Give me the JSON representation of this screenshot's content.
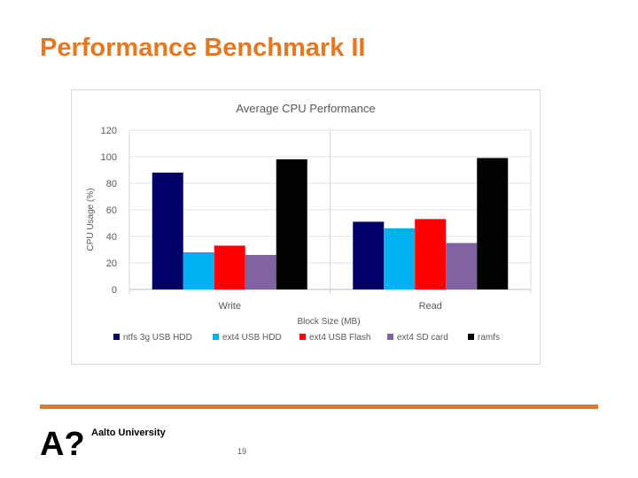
{
  "slide": {
    "title": "Performance Benchmark II",
    "logo_text": "Aalto University",
    "logo_mark": "A?",
    "page_number": "19"
  },
  "colors": {
    "accent": "#e87722"
  },
  "chart_data": {
    "type": "bar",
    "title": "Average CPU Performance",
    "xlabel": "Block Size (MB)",
    "ylabel": "CPU Usage (%)",
    "categories": [
      "Write",
      "Read"
    ],
    "ylim": [
      0,
      120
    ],
    "yticks": [
      "0",
      "20",
      "40",
      "60",
      "80",
      "100",
      "120"
    ],
    "grid": true,
    "legend_position": "bottom",
    "series": [
      {
        "name": "ntfs 3g USB HDD",
        "color": "#000066",
        "values": [
          88,
          51
        ]
      },
      {
        "name": "ext4 USB HDD",
        "color": "#00b0f0",
        "values": [
          28,
          46
        ]
      },
      {
        "name": "ext4 USB Flash",
        "color": "#ff0000",
        "values": [
          33,
          53
        ]
      },
      {
        "name": "ext4 SD card",
        "color": "#8064a2",
        "values": [
          26,
          35
        ]
      },
      {
        "name": "ramfs",
        "color": "#000000",
        "values": [
          98,
          99
        ]
      }
    ]
  }
}
